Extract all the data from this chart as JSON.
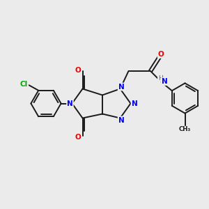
{
  "bg_color": "#ebebeb",
  "bond_color": "#1a1a1a",
  "N_color": "#0000ee",
  "O_color": "#ee0000",
  "Cl_color": "#00aa00",
  "NH_color": "#008888",
  "figsize": [
    3.0,
    3.0
  ],
  "dpi": 100,
  "xlim": [
    0,
    10
  ],
  "ylim": [
    0,
    10
  ]
}
